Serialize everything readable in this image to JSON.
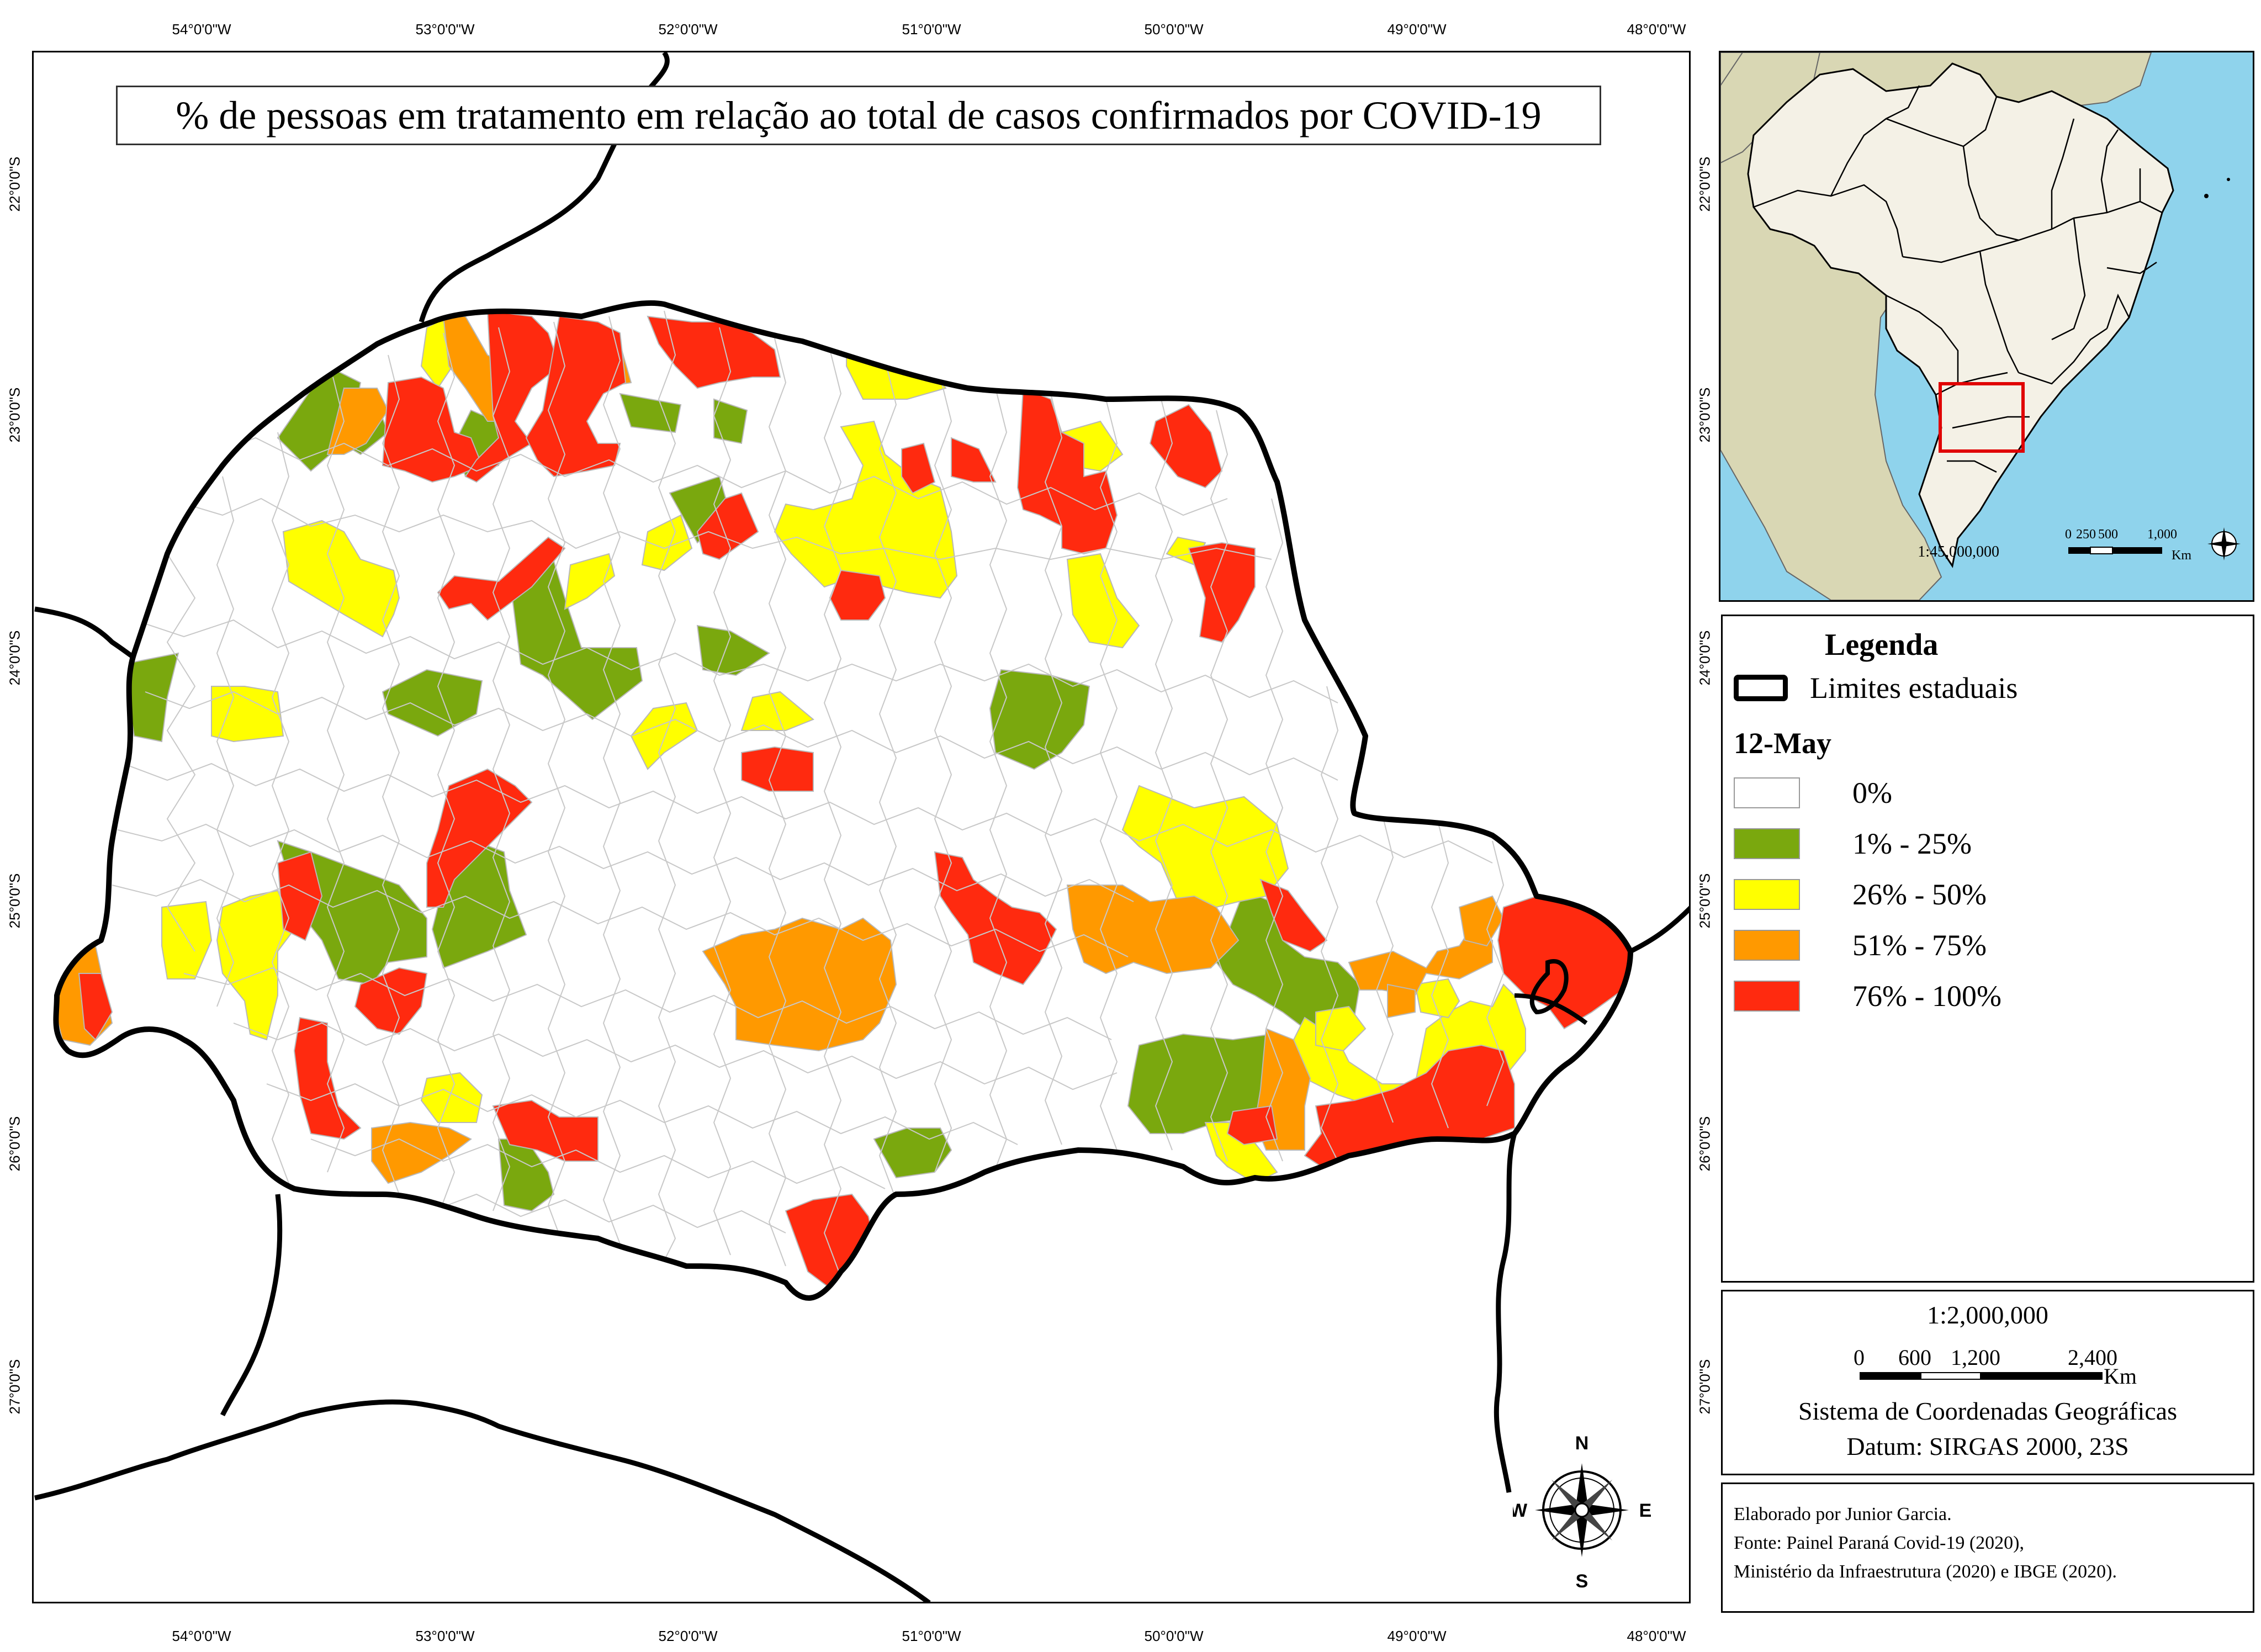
{
  "title": "% de pessoas em tratamento em relação ao total de casos confirmados por COVID-19",
  "graticule": {
    "lon_top": [
      "54°0'0\"W",
      "53°0'0\"W",
      "52°0'0\"W",
      "51°0'0\"W",
      "50°0'0\"W",
      "49°0'0\"W",
      "48°0'0\"W"
    ],
    "lon_bottom": [
      "54°0'0\"W",
      "53°0'0\"W",
      "52°0'0\"W",
      "51°0'0\"W",
      "50°0'0\"W",
      "49°0'0\"W",
      "48°0'0\"W"
    ],
    "lat_left": [
      "22°0'0\"S",
      "23°0'0\"S",
      "24°0'0\"S",
      "25°0'0\"S",
      "26°0'0\"S",
      "27°0'0\"S"
    ],
    "lat_right": [
      "22°0'0\"S",
      "23°0'0\"S",
      "24°0'0\"S",
      "25°0'0\"S",
      "26°0'0\"S",
      "27°0'0\"S"
    ]
  },
  "legend": {
    "title": "Legenda",
    "boundary_label": "Limites estaduais",
    "date_label": "12-May",
    "classes": [
      {
        "label": "0%",
        "color": "#ffffff"
      },
      {
        "label": "1% - 25%",
        "color": "#7aa80e"
      },
      {
        "label": "26% - 50%",
        "color": "#ffff00"
      },
      {
        "label": "51% - 75%",
        "color": "#ff9900"
      },
      {
        "label": "76% - 100%",
        "color": "#ff2a0f"
      }
    ]
  },
  "scale_box": {
    "ratio": "1:2,000,000",
    "ticks": [
      "0",
      "600",
      "1,200",
      "2,400"
    ],
    "unit": "Km",
    "crs_line1": "Sistema de Coordenadas Geográficas",
    "crs_line2": "Datum: SIRGAS 2000, 23S"
  },
  "inset": {
    "ratio": "1:45,000,000",
    "ticks": [
      "0",
      "250",
      "500",
      "1,000"
    ],
    "unit": "Km",
    "colors": {
      "ocean": "#8fd3ec",
      "brazil": "#f4f1e6",
      "neighbors": "#d9d7b4",
      "highlight": "#e00000"
    }
  },
  "compass": {
    "n": "N",
    "s": "S",
    "e": "E",
    "w": "W"
  },
  "credits": [
    "Elaborado por Junior Garcia.",
    "Fonte: Painel Paraná Covid-19 (2020),",
    "Ministério da Infraestrutura (2020) e IBGE (2020)."
  ]
}
